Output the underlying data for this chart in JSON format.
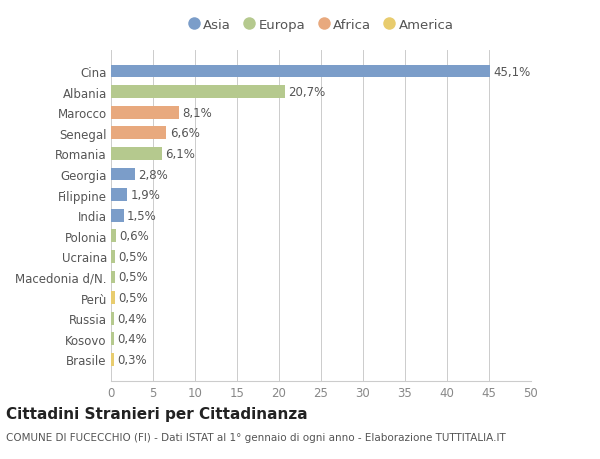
{
  "categories": [
    "Brasile",
    "Kosovo",
    "Russia",
    "Perù",
    "Macedonia d/N.",
    "Ucraina",
    "Polonia",
    "India",
    "Filippine",
    "Georgia",
    "Romania",
    "Senegal",
    "Marocco",
    "Albania",
    "Cina"
  ],
  "values": [
    0.3,
    0.4,
    0.4,
    0.5,
    0.5,
    0.5,
    0.6,
    1.5,
    1.9,
    2.8,
    6.1,
    6.6,
    8.1,
    20.7,
    45.1
  ],
  "labels": [
    "0,3%",
    "0,4%",
    "0,4%",
    "0,5%",
    "0,5%",
    "0,5%",
    "0,6%",
    "1,5%",
    "1,9%",
    "2,8%",
    "6,1%",
    "6,6%",
    "8,1%",
    "20,7%",
    "45,1%"
  ],
  "continents": [
    "America",
    "Europa",
    "Europa",
    "America",
    "Europa",
    "Europa",
    "Europa",
    "Asia",
    "Asia",
    "Asia",
    "Europa",
    "Africa",
    "Africa",
    "Europa",
    "Asia"
  ],
  "continent_colors": {
    "Asia": "#7b9dc9",
    "Europa": "#b5c98e",
    "Africa": "#e8a97e",
    "America": "#e8cc6e"
  },
  "legend_order": [
    "Asia",
    "Europa",
    "Africa",
    "America"
  ],
  "xlim": [
    0,
    50
  ],
  "xticks": [
    0,
    5,
    10,
    15,
    20,
    25,
    30,
    35,
    40,
    45,
    50
  ],
  "title": "Cittadini Stranieri per Cittadinanza",
  "subtitle": "COMUNE DI FUCECCHIO (FI) - Dati ISTAT al 1° gennaio di ogni anno - Elaborazione TUTTITALIA.IT",
  "bg_color": "#ffffff",
  "grid_color": "#cccccc",
  "bar_height": 0.62,
  "label_fontsize": 8.5,
  "tick_fontsize": 8.5,
  "title_fontsize": 11,
  "subtitle_fontsize": 7.5,
  "legend_fontsize": 9.5
}
